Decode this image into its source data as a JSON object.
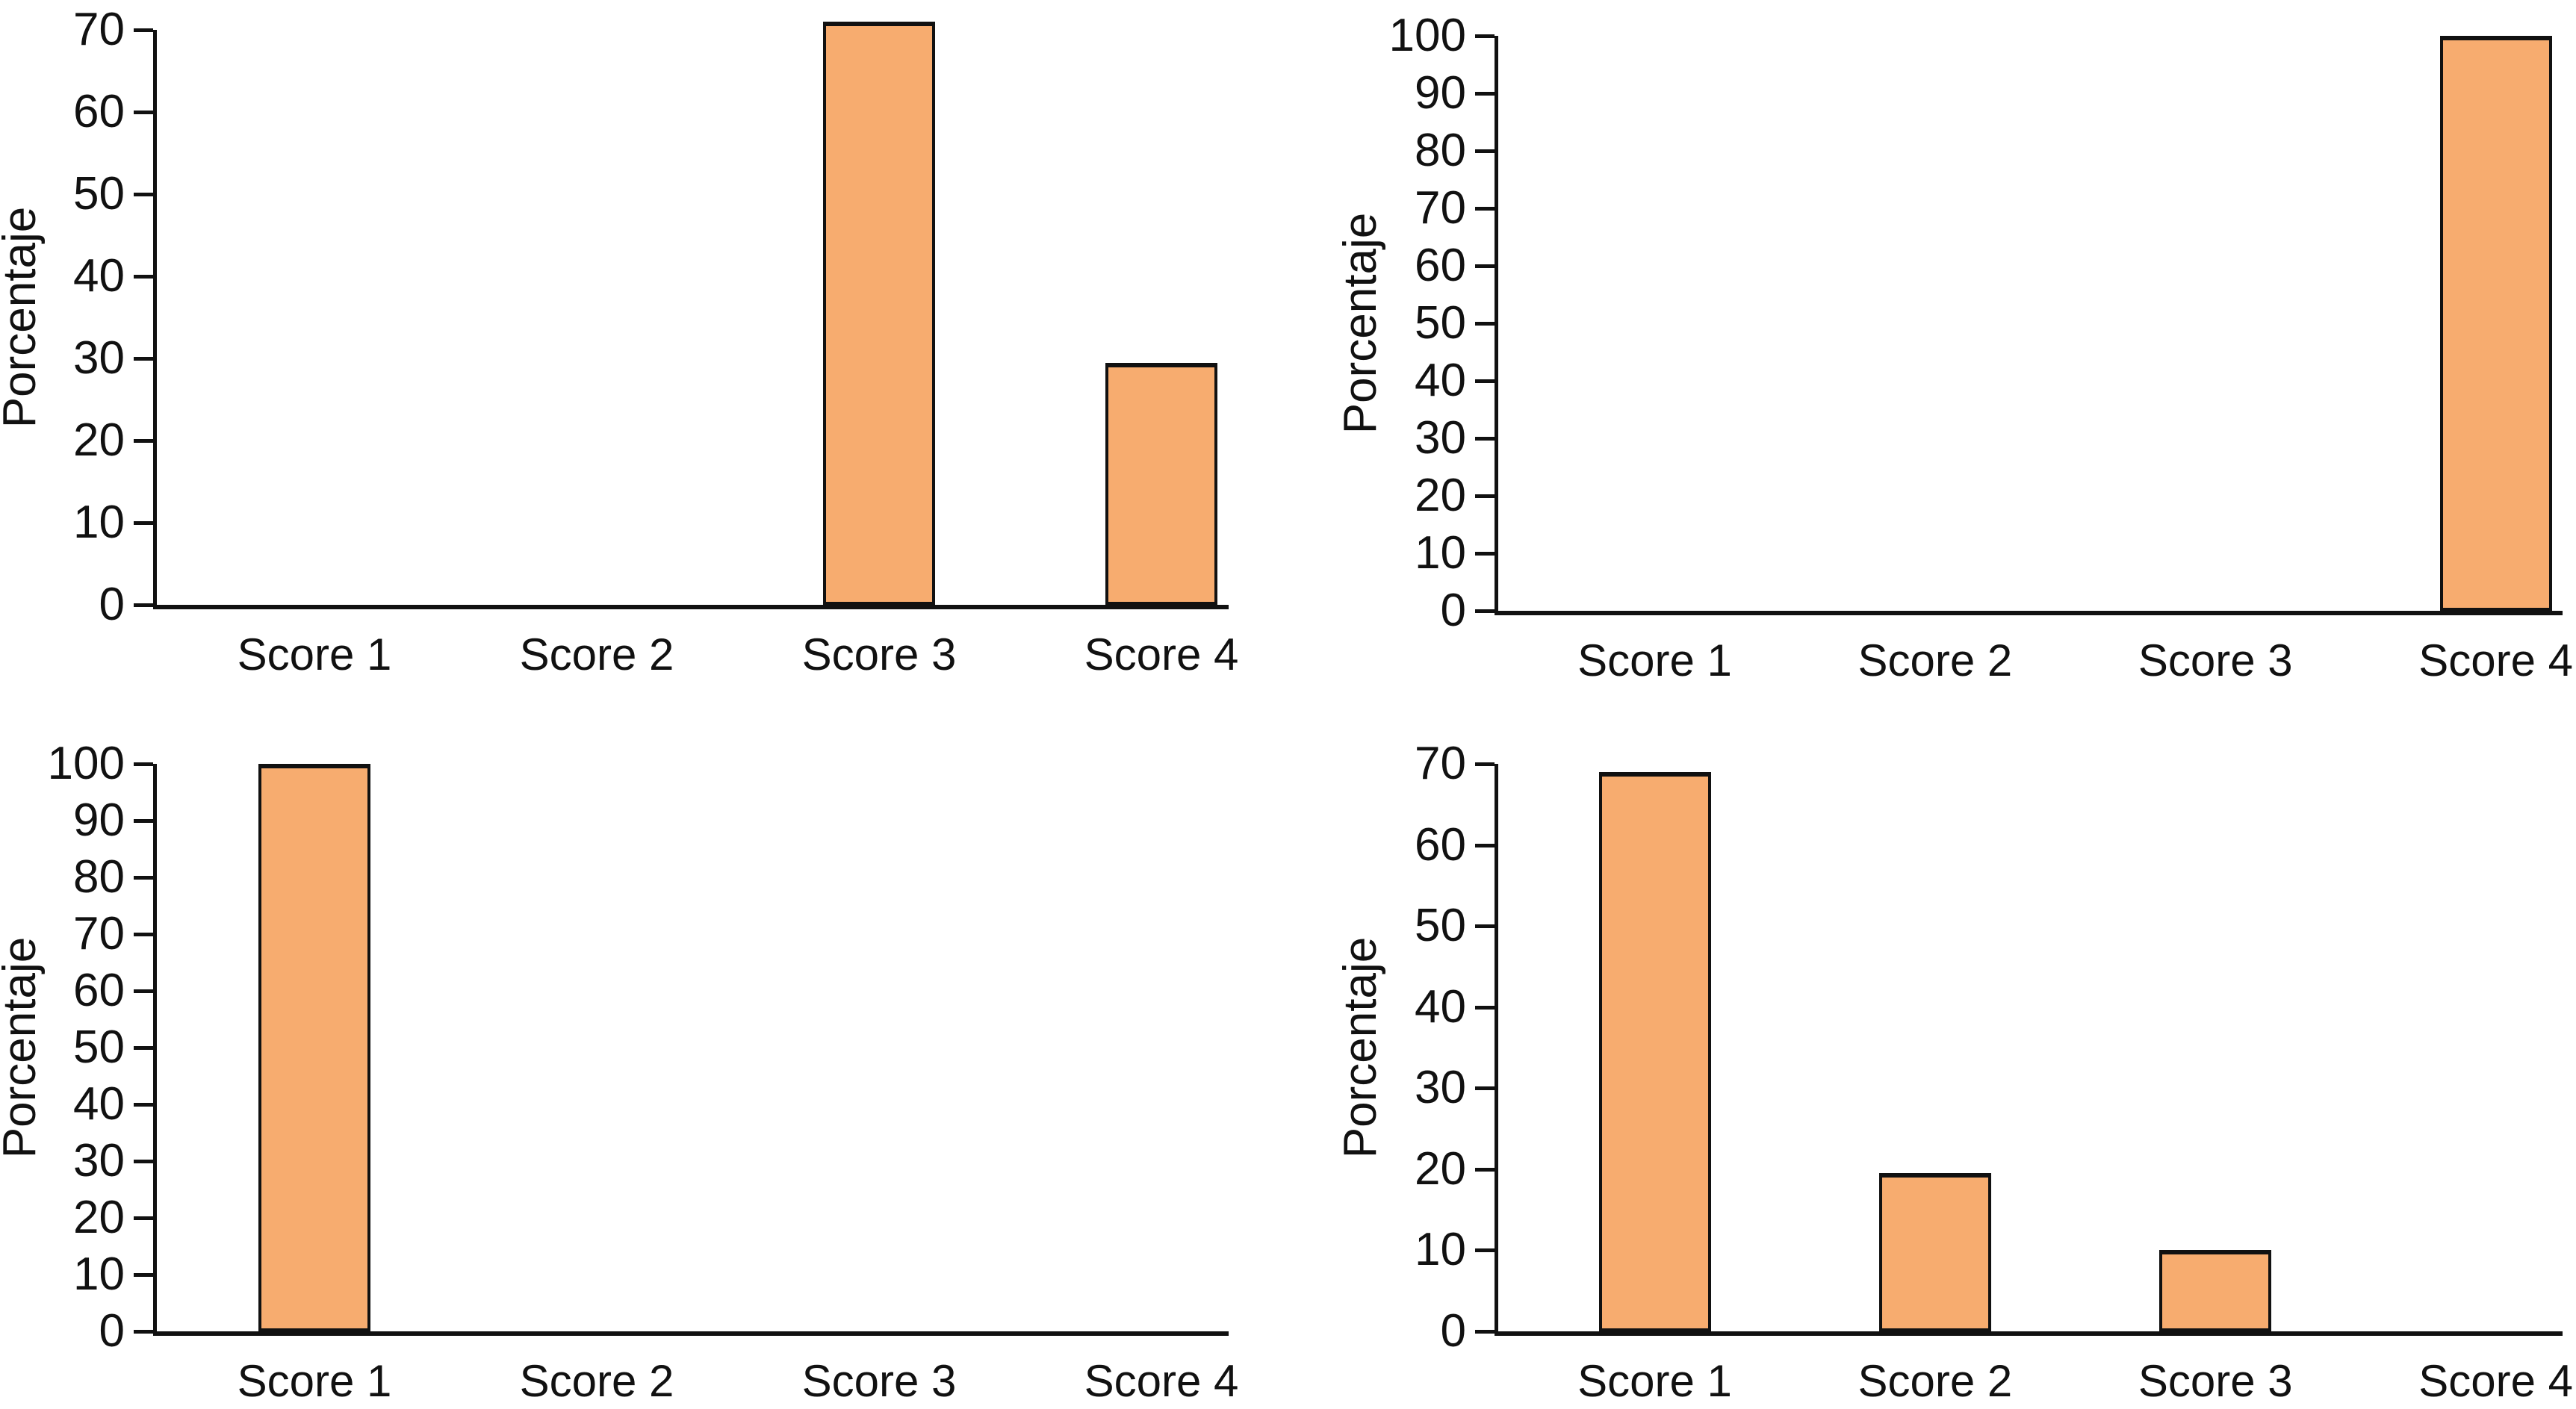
{
  "colors": {
    "background": "#FFFFFF",
    "bar_fill": "#F7AC6F",
    "bar_stroke": "#111111",
    "axis": "#111111",
    "text": "#111111"
  },
  "chart_data": [
    {
      "type": "bar",
      "position": "top-left",
      "title": "",
      "xlabel": "",
      "ylabel": "Porcentaje",
      "categories": [
        "Score 1",
        "Score 2",
        "Score 3",
        "Score 4"
      ],
      "values": [
        0,
        0,
        71,
        29.5
      ],
      "ylim": [
        0,
        70
      ],
      "ytick_step": 10,
      "grid": false,
      "legend": false,
      "bar_color": "#F7AC6F"
    },
    {
      "type": "bar",
      "position": "top-right",
      "title": "",
      "xlabel": "",
      "ylabel": "Porcentaje",
      "categories": [
        "Score 1",
        "Score 2",
        "Score 3",
        "Score 4"
      ],
      "values": [
        0,
        0,
        0,
        100
      ],
      "ylim": [
        0,
        100
      ],
      "ytick_step": 10,
      "grid": false,
      "legend": false,
      "bar_color": "#F7AC6F"
    },
    {
      "type": "bar",
      "position": "bottom-left",
      "title": "",
      "xlabel": "",
      "ylabel": "Porcentaje",
      "categories": [
        "Score 1",
        "Score 2",
        "Score 3",
        "Score 4"
      ],
      "values": [
        100,
        0,
        0,
        0
      ],
      "ylim": [
        0,
        100
      ],
      "ytick_step": 10,
      "grid": false,
      "legend": false,
      "bar_color": "#F7AC6F"
    },
    {
      "type": "bar",
      "position": "bottom-right",
      "title": "",
      "xlabel": "",
      "ylabel": "Porcentaje",
      "categories": [
        "Score 1",
        "Score 2",
        "Score 3",
        "Score 4"
      ],
      "values": [
        69,
        19.5,
        10,
        0
      ],
      "ylim": [
        0,
        70
      ],
      "ytick_step": 10,
      "grid": false,
      "legend": false,
      "bar_color": "#F7AC6F"
    }
  ]
}
